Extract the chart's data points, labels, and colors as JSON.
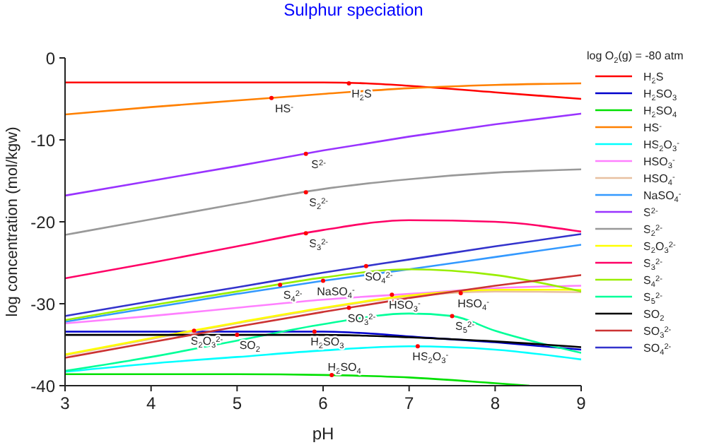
{
  "chart_data": {
    "type": "line",
    "title": "Sulphur speciation",
    "xlabel": "pH",
    "ylabel": "log concentration (mol/kgw)",
    "legend_title": "log O$_{2}$(g) = -80 atm",
    "legend": "right",
    "marker": "none",
    "grid": false,
    "xlim": [
      3,
      9
    ],
    "xticks": [
      3,
      4,
      5,
      6,
      7,
      8,
      9
    ],
    "ylim": [
      -40,
      0
    ],
    "yticks": [
      -40,
      -30,
      -20,
      -10,
      0
    ],
    "series": [
      {
        "name": "H$_{2}$S",
        "color": "#ff0000",
        "x": [
          3,
          4,
          5,
          6,
          6.5,
          7,
          8,
          9
        ],
        "values": [
          -3,
          -3,
          -3,
          -3,
          -3.1,
          -3.4,
          -4.2,
          -5
        ]
      },
      {
        "name": "H$_{2}$SO$_{3}$",
        "color": "#0000cc",
        "x": [
          3,
          4,
          5,
          6,
          6.5,
          7,
          8,
          9
        ],
        "values": [
          -33.4,
          -33.4,
          -33.4,
          -33.4,
          -33.6,
          -34,
          -34.7,
          -35.6
        ]
      },
      {
        "name": "H$_{2}$SO$_{4}$",
        "color": "#00e000",
        "x": [
          3,
          4,
          5,
          6,
          7,
          8,
          8.4
        ],
        "values": [
          -38.6,
          -38.6,
          -38.6,
          -38.7,
          -39,
          -39.7,
          -40
        ]
      },
      {
        "name": "HS$^{-}$",
        "color": "#ff8000",
        "x": [
          3,
          4,
          5,
          6,
          7,
          8,
          9
        ],
        "values": [
          -6.9,
          -6,
          -5.2,
          -4.4,
          -3.7,
          -3.3,
          -3.1
        ]
      },
      {
        "name": "HS$_{2}$O$_{3}$$^{-}$",
        "color": "#00ffff",
        "x": [
          3,
          4,
          5,
          6,
          7,
          8,
          9
        ],
        "values": [
          -38.3,
          -37.3,
          -36.5,
          -35.7,
          -35.2,
          -35.6,
          -36.8
        ]
      },
      {
        "name": "HSO$_{3}$$^{-}$",
        "color": "#ff80ff",
        "x": [
          3,
          4,
          5,
          6,
          7,
          8,
          9
        ],
        "values": [
          -32.4,
          -31.5,
          -30.5,
          -29.5,
          -28.8,
          -28.1,
          -27.8
        ]
      },
      {
        "name": "HSO$_{4}$$^{-}$",
        "color": "#e8c0a0",
        "x": [
          3,
          4,
          5,
          6,
          7,
          8,
          9
        ],
        "values": [
          -36.3,
          -34.3,
          -32.4,
          -30.6,
          -29.1,
          -28.5,
          -28.6
        ]
      },
      {
        "name": "NaSO$_{4}$$^{-}$",
        "color": "#3399ff",
        "x": [
          3,
          4,
          5,
          6,
          7,
          8,
          9
        ],
        "values": [
          -32.2,
          -30.5,
          -28.8,
          -27.2,
          -25.8,
          -24.3,
          -22.8
        ]
      },
      {
        "name": "S$^{2-}$",
        "color": "#9933ff",
        "x": [
          3,
          4,
          5,
          6,
          7,
          8,
          9
        ],
        "values": [
          -16.8,
          -15,
          -13.2,
          -11.3,
          -9.6,
          -8.1,
          -6.8
        ]
      },
      {
        "name": "S$_{2}$$^{2-}$",
        "color": "#999999",
        "x": [
          3,
          4,
          5,
          6,
          7,
          8,
          9
        ],
        "values": [
          -21.6,
          -19.7,
          -17.8,
          -16,
          -14.8,
          -14,
          -13.6
        ]
      },
      {
        "name": "S$_{2}$O$_{3}$$^{2-}$",
        "color": "#ffff00",
        "x": [
          3,
          4,
          5,
          6,
          7,
          8,
          9
        ],
        "values": [
          -36.2,
          -34.2,
          -32.3,
          -30.5,
          -29,
          -28.3,
          -28.3
        ]
      },
      {
        "name": "S$_{3}$$^{2-}$",
        "color": "#ff0066",
        "x": [
          3,
          4,
          5,
          6,
          7,
          8,
          9
        ],
        "values": [
          -26.9,
          -25,
          -23,
          -21,
          -19.8,
          -20,
          -21.2
        ]
      },
      {
        "name": "S$_{4}$$^{2-}$",
        "color": "#99ee00",
        "x": [
          3,
          4,
          5,
          6,
          7,
          8,
          9
        ],
        "values": [
          -32,
          -30.2,
          -28.5,
          -26.8,
          -25.8,
          -26.5,
          -28.5
        ]
      },
      {
        "name": "S$_{5}$$^{2-}$",
        "color": "#00ff99",
        "x": [
          3,
          4,
          5,
          6,
          7,
          7.5,
          8,
          9
        ],
        "values": [
          -38.2,
          -36.5,
          -34.5,
          -32.5,
          -31.2,
          -31.5,
          -33.3,
          -36
        ]
      },
      {
        "name": "SO$_{2}$",
        "color": "#000000",
        "x": [
          3,
          4,
          5,
          6,
          6.5,
          7,
          8,
          9
        ],
        "values": [
          -33.8,
          -33.8,
          -33.8,
          -33.8,
          -33.9,
          -34.1,
          -34.6,
          -35.3
        ]
      },
      {
        "name": "SO$_{3}$$^{2-}$",
        "color": "#cc3333",
        "x": [
          3,
          4,
          5,
          6,
          7,
          8,
          9
        ],
        "values": [
          -36.6,
          -34.7,
          -32.8,
          -31,
          -29.3,
          -27.8,
          -26.5
        ]
      },
      {
        "name": "SO$_{4}$$^{2-}$",
        "color": "#3333cc",
        "x": [
          3,
          4,
          5,
          6,
          7,
          8,
          9
        ],
        "values": [
          -31.5,
          -29.7,
          -28,
          -26.2,
          -24.6,
          -23,
          -21.5
        ]
      }
    ],
    "annotations": [
      {
        "text": "H$_{2}$S",
        "x": 6.3,
        "y": -3.1
      },
      {
        "text": "HS$^{-}$",
        "x": 5.4,
        "y": -4.9
      },
      {
        "text": "S$^{2-}$",
        "x": 5.8,
        "y": -11.7
      },
      {
        "text": "S$_{2}$$^{2-}$",
        "x": 5.8,
        "y": -16.4
      },
      {
        "text": "S$_{3}$$^{2-}$",
        "x": 5.8,
        "y": -21.4
      },
      {
        "text": "SO$_{4}$$^{2-}$",
        "x": 6.5,
        "y": -25.4
      },
      {
        "text": "S$_{4}$$^{2-}$",
        "x": 5.5,
        "y": -27.7
      },
      {
        "text": "NaSO$_{4}$$^{-}$",
        "x": 6.0,
        "y": -27.2
      },
      {
        "text": "HSO$_{3}$$^{-}$",
        "x": 6.8,
        "y": -28.9
      },
      {
        "text": "S$_{2}$O$_{3}$$^{2-}$",
        "x": 4.5,
        "y": -33.3
      },
      {
        "text": "SO$_{3}$$^{2-}$",
        "x": 6.3,
        "y": -30.5
      },
      {
        "text": "HSO$_{4}$$^{-}$",
        "x": 7.6,
        "y": -28.7
      },
      {
        "text": "S$_{5}$$^{2-}$",
        "x": 7.5,
        "y": -31.5
      },
      {
        "text": "H$_{2}$SO$_{3}$",
        "x": 5.9,
        "y": -33.4
      },
      {
        "text": "SO$_{2}$",
        "x": 5.0,
        "y": -33.8
      },
      {
        "text": "HS$_{2}$O$_{3}$$^{-}$",
        "x": 7.1,
        "y": -35.2
      },
      {
        "text": "H$_{2}$SO$_{4}$",
        "x": 6.1,
        "y": -38.7
      }
    ]
  }
}
